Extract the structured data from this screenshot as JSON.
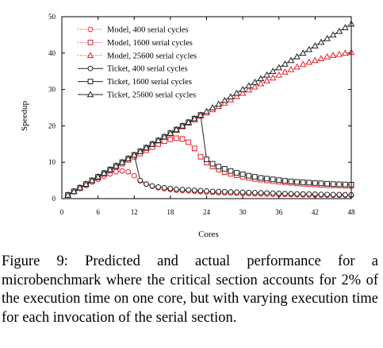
{
  "chart_data": {
    "type": "line",
    "xlabel": "Cores",
    "ylabel": "Speedup",
    "xlim": [
      0,
      48
    ],
    "ylim": [
      0,
      50
    ],
    "xticks": [
      0,
      6,
      12,
      18,
      24,
      30,
      36,
      42,
      48
    ],
    "yticks": [
      0,
      10,
      20,
      30,
      40,
      50
    ],
    "grid": false,
    "legend_position": "top-left",
    "series": [
      {
        "name": "Model, 400 serial cycles",
        "color": "#e8202a",
        "marker": "circle",
        "line": "dotted",
        "x": [
          1,
          2,
          3,
          4,
          5,
          6,
          7,
          8,
          9,
          10,
          11,
          12,
          13,
          14,
          15,
          16,
          17,
          18,
          19,
          20,
          21,
          22,
          23,
          24,
          25,
          26,
          27,
          28,
          29,
          30,
          31,
          32,
          33,
          34,
          35,
          36,
          37,
          38,
          39,
          40,
          41,
          42,
          43,
          44,
          45,
          46,
          47,
          48
        ],
        "y": [
          1.0,
          1.9,
          2.8,
          3.6,
          4.5,
          5.3,
          6.1,
          6.8,
          7.4,
          7.6,
          7.4,
          6.3,
          4.9,
          4.0,
          3.4,
          3.0,
          2.7,
          2.5,
          2.3,
          2.2,
          2.1,
          2.0,
          1.9,
          1.8,
          1.7,
          1.6,
          1.55,
          1.5,
          1.45,
          1.4,
          1.35,
          1.3,
          1.25,
          1.2,
          1.18,
          1.15,
          1.12,
          1.1,
          1.07,
          1.05,
          1.03,
          1.0,
          0.98,
          0.96,
          0.94,
          0.92,
          0.9,
          0.88
        ]
      },
      {
        "name": "Model, 1600 serial cycles",
        "color": "#e8202a",
        "marker": "square",
        "line": "dotted",
        "x": [
          1,
          2,
          3,
          4,
          5,
          6,
          7,
          8,
          9,
          10,
          11,
          12,
          13,
          14,
          15,
          16,
          17,
          18,
          19,
          20,
          21,
          22,
          23,
          24,
          25,
          26,
          27,
          28,
          29,
          30,
          31,
          32,
          33,
          34,
          35,
          36,
          37,
          38,
          39,
          40,
          41,
          42,
          43,
          44,
          45,
          46,
          47,
          48
        ],
        "y": [
          1.0,
          2.0,
          2.9,
          3.9,
          4.9,
          5.8,
          6.8,
          7.7,
          8.7,
          9.6,
          10.6,
          11.5,
          12.4,
          13.3,
          14.2,
          15.0,
          15.8,
          16.3,
          16.6,
          16.4,
          15.5,
          13.8,
          11.5,
          9.9,
          8.8,
          8.0,
          7.3,
          6.8,
          6.4,
          6.0,
          5.7,
          5.4,
          5.2,
          5.0,
          4.8,
          4.65,
          4.5,
          4.35,
          4.2,
          4.1,
          4.0,
          3.9,
          3.8,
          3.7,
          3.65,
          3.6,
          3.55,
          3.5
        ]
      },
      {
        "name": "Model, 25600 serial cycles",
        "color": "#e8202a",
        "marker": "triangle",
        "line": "dotted",
        "x": [
          1,
          2,
          3,
          4,
          5,
          6,
          7,
          8,
          9,
          10,
          11,
          12,
          13,
          14,
          15,
          16,
          17,
          18,
          19,
          20,
          21,
          22,
          23,
          24,
          25,
          26,
          27,
          28,
          29,
          30,
          31,
          32,
          33,
          34,
          35,
          36,
          37,
          38,
          39,
          40,
          41,
          42,
          43,
          44,
          45,
          46,
          47,
          48
        ],
        "y": [
          1.0,
          2.0,
          3.0,
          4.0,
          5.0,
          6.0,
          7.0,
          8.0,
          9.0,
          10.0,
          11.0,
          12.0,
          13.0,
          13.9,
          14.9,
          15.9,
          16.9,
          17.9,
          18.8,
          19.8,
          20.8,
          21.7,
          22.7,
          23.6,
          24.5,
          25.4,
          26.3,
          27.2,
          28.1,
          29.0,
          29.9,
          30.7,
          31.6,
          32.4,
          33.2,
          34.0,
          34.8,
          35.5,
          36.2,
          36.9,
          37.5,
          38.0,
          38.5,
          39.0,
          39.4,
          39.7,
          40.0,
          40.2
        ]
      },
      {
        "name": "Ticket, 400 serial cycles",
        "color": "#222222",
        "marker": "circle",
        "line": "solid",
        "x": [
          1,
          2,
          3,
          4,
          5,
          6,
          7,
          8,
          9,
          10,
          11,
          12,
          13,
          14,
          15,
          16,
          17,
          18,
          19,
          20,
          21,
          22,
          23,
          24,
          25,
          26,
          27,
          28,
          29,
          30,
          31,
          32,
          33,
          34,
          35,
          36,
          37,
          38,
          39,
          40,
          41,
          42,
          43,
          44,
          45,
          46,
          47,
          48
        ],
        "y": [
          1.0,
          2.0,
          3.0,
          4.0,
          5.0,
          6.0,
          7.0,
          8.0,
          9.0,
          10.0,
          11.0,
          12.0,
          5.0,
          4.0,
          3.5,
          3.2,
          3.0,
          2.8,
          2.6,
          2.5,
          2.4,
          2.3,
          2.2,
          2.1,
          2.0,
          1.95,
          1.9,
          1.85,
          1.8,
          1.75,
          1.7,
          1.65,
          1.6,
          1.55,
          1.5,
          1.45,
          1.4,
          1.35,
          1.3,
          1.27,
          1.24,
          1.21,
          1.18,
          1.15,
          1.12,
          1.1,
          1.08,
          1.05
        ]
      },
      {
        "name": "Ticket, 1600 serial cycles",
        "color": "#222222",
        "marker": "square",
        "line": "solid",
        "x": [
          1,
          2,
          3,
          4,
          5,
          6,
          7,
          8,
          9,
          10,
          11,
          12,
          13,
          14,
          15,
          16,
          17,
          18,
          19,
          20,
          21,
          22,
          23,
          24,
          25,
          26,
          27,
          28,
          29,
          30,
          31,
          32,
          33,
          34,
          35,
          36,
          37,
          38,
          39,
          40,
          41,
          42,
          43,
          44,
          45,
          46,
          47,
          48
        ],
        "y": [
          1.0,
          2.0,
          3.0,
          4.0,
          5.0,
          6.0,
          7.0,
          8.0,
          9.0,
          10.0,
          11.0,
          12.0,
          13.0,
          14.0,
          15.0,
          16.0,
          17.0,
          18.0,
          19.0,
          20.0,
          21.0,
          22.0,
          23.0,
          10.8,
          9.6,
          8.8,
          8.2,
          7.6,
          7.1,
          6.7,
          6.3,
          6.0,
          5.7,
          5.5,
          5.3,
          5.1,
          4.9,
          4.75,
          4.6,
          4.5,
          4.4,
          4.3,
          4.2,
          4.1,
          4.0,
          3.95,
          3.9,
          3.85
        ]
      },
      {
        "name": "Ticket, 25600 serial cycles",
        "color": "#222222",
        "marker": "triangle",
        "line": "solid",
        "x": [
          1,
          2,
          3,
          4,
          5,
          6,
          7,
          8,
          9,
          10,
          11,
          12,
          13,
          14,
          15,
          16,
          17,
          18,
          19,
          20,
          21,
          22,
          23,
          24,
          25,
          26,
          27,
          28,
          29,
          30,
          31,
          32,
          33,
          34,
          35,
          36,
          37,
          38,
          39,
          40,
          41,
          42,
          43,
          44,
          45,
          46,
          47,
          48
        ],
        "y": [
          1.0,
          2.0,
          3.0,
          4.0,
          5.0,
          6.0,
          7.0,
          8.0,
          9.0,
          10.0,
          11.0,
          12.0,
          13.0,
          14.0,
          15.0,
          16.0,
          17.0,
          18.0,
          19.0,
          20.0,
          21.0,
          22.0,
          23.0,
          24.0,
          25.0,
          26.0,
          27.0,
          28.0,
          29.0,
          30.0,
          31.0,
          32.0,
          33.0,
          34.0,
          35.0,
          36.0,
          37.0,
          38.0,
          39.0,
          40.0,
          41.0,
          42.0,
          43.0,
          44.0,
          45.0,
          46.0,
          47.0,
          48.0
        ]
      }
    ]
  },
  "caption": {
    "text": "Figure 9: Predicted and actual performance for a microbenchmark where the critical section accounts for 2% of the execution time on one core, but with varying execution time for each invocation of the serial section."
  }
}
